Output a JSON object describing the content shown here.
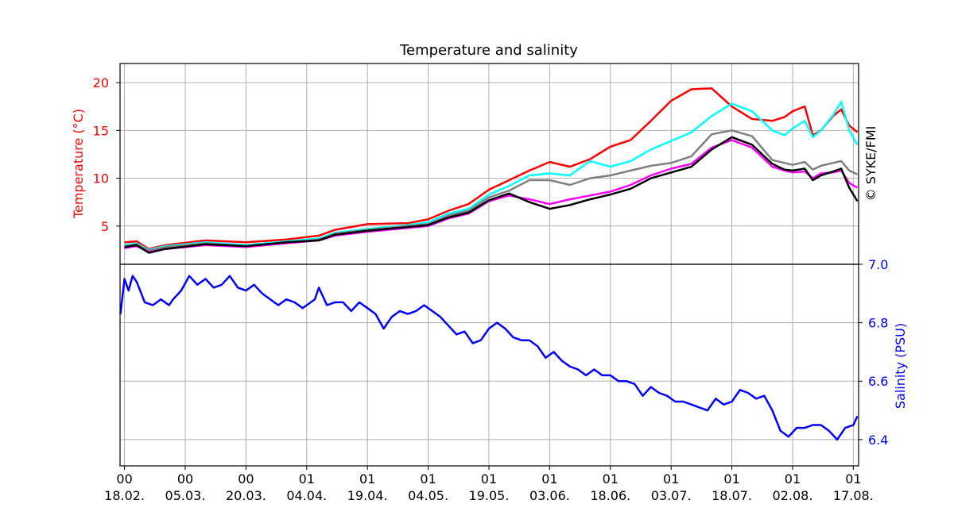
{
  "chart_data": {
    "type": "line",
    "title": "Temperature and salinity",
    "copyright": "© SYKE/FMI",
    "x_ticks": [
      {
        "top": "00",
        "bottom": "18.02."
      },
      {
        "top": "00",
        "bottom": "05.03."
      },
      {
        "top": "00",
        "bottom": "20.03."
      },
      {
        "top": "01",
        "bottom": "04.04."
      },
      {
        "top": "01",
        "bottom": "19.04."
      },
      {
        "top": "01",
        "bottom": "04.05."
      },
      {
        "top": "01",
        "bottom": "19.05."
      },
      {
        "top": "01",
        "bottom": "03.06."
      },
      {
        "top": "01",
        "bottom": "18.06."
      },
      {
        "top": "01",
        "bottom": "03.07."
      },
      {
        "top": "01",
        "bottom": "18.07."
      },
      {
        "top": "01",
        "bottom": "02.08."
      },
      {
        "top": "01",
        "bottom": "17.08."
      }
    ],
    "x_range_days": [
      -1.1,
      181.3
    ],
    "grid": true,
    "panels": [
      {
        "id": "temperature",
        "ylabel": "Temperature (°C)",
        "ylabel_color": "#ff0000",
        "ylim": [
          1.0,
          22.0
        ],
        "yticks": [
          5,
          10,
          15,
          20
        ],
        "series": [
          {
            "color": "#ff0000",
            "x": [
              0,
              3,
              6,
              10,
              20,
              30,
              40,
              48,
              52,
              60,
              70,
              75,
              80,
              85,
              90,
              95,
              100,
              105,
              110,
              115,
              120,
              125,
              130,
              135,
              140,
              145,
              150,
              155,
              160,
              163,
              165,
              168,
              170,
              172,
              175,
              177,
              179,
              181
            ],
            "y": [
              3.3,
              3.4,
              2.6,
              3.0,
              3.5,
              3.3,
              3.6,
              4.0,
              4.6,
              5.2,
              5.3,
              5.7,
              6.6,
              7.3,
              8.8,
              9.8,
              10.8,
              11.7,
              11.2,
              12.0,
              13.3,
              14.0,
              16.0,
              18.1,
              19.3,
              19.4,
              17.5,
              16.2,
              16.0,
              16.4,
              17.0,
              17.5,
              14.5,
              15.0,
              16.5,
              17.2,
              15.5,
              14.8
            ]
          },
          {
            "color": "#00ffff",
            "x": [
              0,
              3,
              6,
              10,
              20,
              30,
              40,
              48,
              52,
              60,
              70,
              75,
              80,
              85,
              90,
              95,
              100,
              105,
              110,
              115,
              120,
              125,
              130,
              135,
              140,
              145,
              150,
              155,
              160,
              163,
              165,
              168,
              170,
              172,
              175,
              177,
              179,
              181
            ],
            "y": [
              3.0,
              3.2,
              2.5,
              2.9,
              3.3,
              3.0,
              3.4,
              3.7,
              4.3,
              4.7,
              5.1,
              5.4,
              6.3,
              6.8,
              8.3,
              9.2,
              10.3,
              10.5,
              10.3,
              11.8,
              11.2,
              11.8,
              13.0,
              13.9,
              14.8,
              16.5,
              17.8,
              17.0,
              15.0,
              14.5,
              15.2,
              16.0,
              14.3,
              15.0,
              16.6,
              18.0,
              15.0,
              13.5
            ]
          },
          {
            "color": "#808080",
            "x": [
              0,
              3,
              6,
              10,
              20,
              30,
              40,
              48,
              52,
              60,
              70,
              75,
              80,
              85,
              90,
              95,
              100,
              105,
              110,
              115,
              120,
              125,
              130,
              135,
              140,
              145,
              150,
              155,
              160,
              163,
              165,
              168,
              170,
              172,
              175,
              177,
              179,
              181
            ],
            "y": [
              2.9,
              3.1,
              2.4,
              2.8,
              3.2,
              2.9,
              3.3,
              3.6,
              4.2,
              4.6,
              5.0,
              5.2,
              6.1,
              6.6,
              8.0,
              8.7,
              9.8,
              9.8,
              9.3,
              10.0,
              10.3,
              10.8,
              11.3,
              11.6,
              12.3,
              14.6,
              15.0,
              14.4,
              11.9,
              11.6,
              11.4,
              11.7,
              10.9,
              11.3,
              11.6,
              11.8,
              10.8,
              10.4
            ]
          },
          {
            "color": "#ff00ff",
            "x": [
              0,
              3,
              6,
              10,
              20,
              30,
              40,
              48,
              52,
              60,
              70,
              75,
              80,
              85,
              90,
              95,
              100,
              105,
              110,
              115,
              120,
              125,
              130,
              135,
              140,
              145,
              150,
              155,
              160,
              163,
              165,
              168,
              170,
              172,
              175,
              177,
              179,
              181
            ],
            "y": [
              2.7,
              2.9,
              2.3,
              2.6,
              3.0,
              2.8,
              3.2,
              3.5,
              4.0,
              4.4,
              4.8,
              5.0,
              5.8,
              6.3,
              7.6,
              8.2,
              7.8,
              7.3,
              7.8,
              8.2,
              8.6,
              9.3,
              10.3,
              11.0,
              11.5,
              13.2,
              14.0,
              13.2,
              11.2,
              10.8,
              10.6,
              10.7,
              10.0,
              10.5,
              10.6,
              10.8,
              9.5,
              9.0
            ]
          },
          {
            "color": "#000000",
            "x": [
              0,
              3,
              6,
              10,
              20,
              30,
              40,
              48,
              52,
              60,
              70,
              75,
              80,
              85,
              90,
              95,
              100,
              105,
              110,
              115,
              120,
              125,
              130,
              135,
              140,
              145,
              150,
              155,
              160,
              163,
              165,
              168,
              170,
              172,
              175,
              177,
              179,
              181
            ],
            "y": [
              2.8,
              3.0,
              2.2,
              2.6,
              3.1,
              2.9,
              3.3,
              3.5,
              4.1,
              4.5,
              4.9,
              5.1,
              5.9,
              6.4,
              7.7,
              8.4,
              7.5,
              6.8,
              7.2,
              7.8,
              8.3,
              8.9,
              10.0,
              10.6,
              11.2,
              13.0,
              14.3,
              13.5,
              11.5,
              10.9,
              10.8,
              11.0,
              9.8,
              10.3,
              10.7,
              11.0,
              9.0,
              7.6
            ]
          }
        ]
      },
      {
        "id": "salinity",
        "ylabel": "Salinity (PSU)",
        "ylabel_color": "#0000ff",
        "ylim": [
          6.31,
          7.0
        ],
        "yticks": [
          6.4,
          6.6,
          6.8,
          7.0
        ],
        "ytick_labels": [
          "6.4",
          "6.6",
          "6.8",
          "7.0"
        ],
        "series": [
          {
            "color": "#0000ff",
            "x": [
              -1,
              0,
              1,
              2,
              3,
              5,
              7,
              9,
              11,
              12,
              14,
              16,
              18,
              20,
              22,
              24,
              26,
              28,
              30,
              32,
              34,
              36,
              38,
              40,
              42,
              44,
              46,
              47,
              48,
              50,
              52,
              54,
              56,
              58,
              60,
              62,
              64,
              66,
              68,
              70,
              72,
              74,
              76,
              78,
              80,
              82,
              84,
              86,
              88,
              90,
              92,
              94,
              96,
              98,
              100,
              102,
              104,
              106,
              108,
              110,
              112,
              114,
              116,
              118,
              120,
              122,
              124,
              126,
              128,
              130,
              132,
              134,
              136,
              138,
              140,
              142,
              144,
              146,
              148,
              150,
              152,
              154,
              156,
              158,
              160,
              162,
              164,
              166,
              168,
              170,
              172,
              174,
              176,
              178,
              180,
              181
            ],
            "y": [
              6.83,
              6.95,
              6.91,
              6.96,
              6.94,
              6.87,
              6.86,
              6.88,
              6.86,
              6.88,
              6.91,
              6.96,
              6.93,
              6.95,
              6.92,
              6.93,
              6.96,
              6.92,
              6.91,
              6.93,
              6.9,
              6.88,
              6.86,
              6.88,
              6.87,
              6.85,
              6.87,
              6.88,
              6.92,
              6.86,
              6.87,
              6.87,
              6.84,
              6.87,
              6.85,
              6.83,
              6.78,
              6.82,
              6.84,
              6.83,
              6.84,
              6.86,
              6.84,
              6.82,
              6.79,
              6.76,
              6.77,
              6.73,
              6.74,
              6.78,
              6.8,
              6.78,
              6.75,
              6.74,
              6.74,
              6.72,
              6.68,
              6.7,
              6.67,
              6.65,
              6.64,
              6.62,
              6.64,
              6.62,
              6.62,
              6.6,
              6.6,
              6.59,
              6.55,
              6.58,
              6.56,
              6.55,
              6.53,
              6.53,
              6.52,
              6.51,
              6.5,
              6.54,
              6.52,
              6.53,
              6.57,
              6.56,
              6.54,
              6.55,
              6.5,
              6.43,
              6.41,
              6.44,
              6.44,
              6.45,
              6.45,
              6.43,
              6.4,
              6.44,
              6.45,
              6.48
            ]
          }
        ]
      }
    ]
  }
}
